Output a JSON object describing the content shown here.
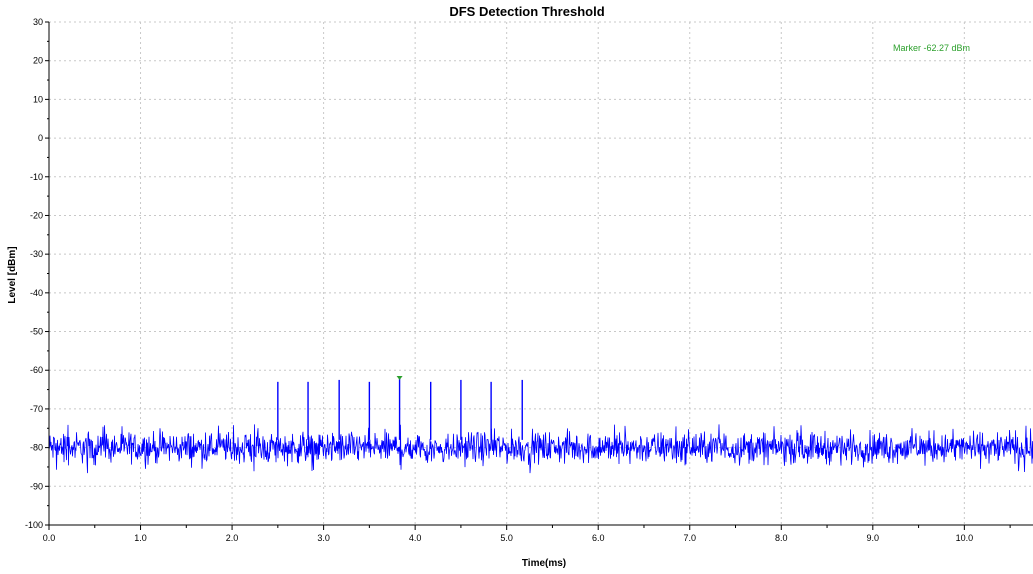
{
  "chart_data": {
    "type": "line",
    "title": "DFS Detection Threshold",
    "xlabel": "Time(ms)",
    "ylabel": "Level [dBm]",
    "xlim": [
      0.0,
      10.75
    ],
    "ylim": [
      -100,
      30
    ],
    "x_ticks": [
      "0.0",
      "1.0",
      "2.0",
      "3.0",
      "4.0",
      "5.0",
      "6.0",
      "7.0",
      "8.0",
      "9.0",
      "10.0"
    ],
    "y_ticks": [
      "30",
      "20",
      "10",
      "0",
      "-10",
      "-20",
      "-30",
      "-40",
      "-50",
      "-60",
      "-70",
      "-80",
      "-90",
      "-100"
    ],
    "grid": true,
    "series": [
      {
        "color": "#0000ff",
        "noise_floor": {
          "x_range": [
            0.0,
            10.75
          ],
          "mean": -80,
          "min": -88,
          "max": -74
        },
        "pulses": [
          {
            "x": 2.5,
            "y": -63
          },
          {
            "x": 2.83,
            "y": -63
          },
          {
            "x": 3.17,
            "y": -62.5
          },
          {
            "x": 3.5,
            "y": -63
          },
          {
            "x": 3.83,
            "y": -62.27
          },
          {
            "x": 4.17,
            "y": -63
          },
          {
            "x": 4.5,
            "y": -62.5
          },
          {
            "x": 4.83,
            "y": -63
          },
          {
            "x": 5.17,
            "y": -62.5
          }
        ]
      }
    ],
    "marker": {
      "label": "Marker -62.27 dBm",
      "x": 3.83,
      "y": -62.27,
      "color": "#2ca02c"
    }
  }
}
